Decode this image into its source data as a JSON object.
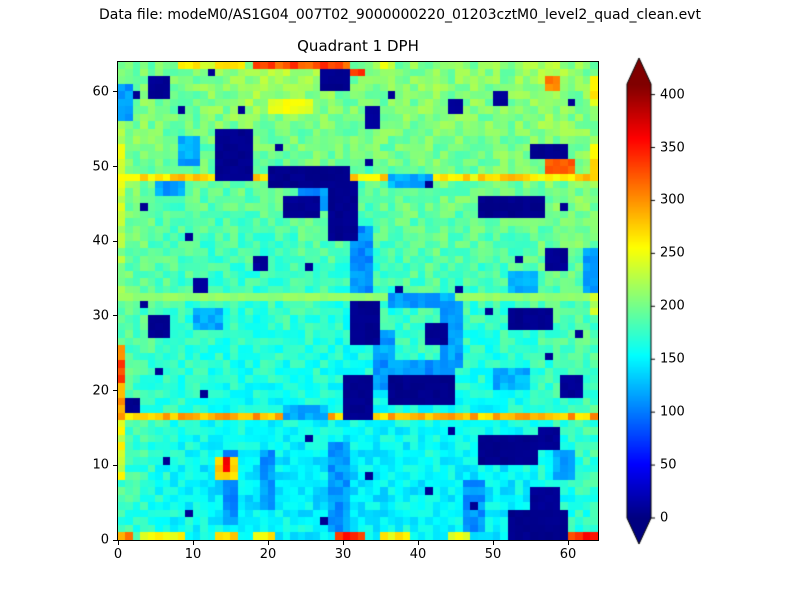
{
  "header": {
    "datafile_label": "Data file: modeM0/AS1G04_007T02_9000000220_01203cztM0_level2_quad_clean.evt"
  },
  "chart_data": {
    "type": "heatmap",
    "title": "Quadrant 1 DPH",
    "nx": 64,
    "ny": 64,
    "xlim": [
      0,
      64
    ],
    "ylim": [
      0,
      64
    ],
    "xticks": [
      0,
      10,
      20,
      30,
      40,
      50,
      60
    ],
    "yticks": [
      0,
      10,
      20,
      30,
      40,
      50,
      60
    ],
    "colormap": "jet",
    "zlim": [
      0,
      410
    ],
    "colorbar": {
      "ticks": [
        0,
        50,
        100,
        150,
        200,
        250,
        300,
        350,
        400
      ],
      "extend": "both",
      "position": "right"
    },
    "grid_note": "DPH counts estimated from rendered pixels; base_grid_16x16 is a coarse downsample (rows listed bottom-to-top), refined by the feature overlays below",
    "base_grid_16x16": [
      [
        175,
        160,
        155,
        150,
        150,
        155,
        150,
        145,
        150,
        155,
        155,
        150,
        150,
        150,
        160,
        170
      ],
      [
        180,
        160,
        150,
        145,
        145,
        150,
        145,
        140,
        145,
        150,
        150,
        150,
        145,
        150,
        160,
        170
      ],
      [
        180,
        165,
        155,
        150,
        150,
        150,
        150,
        145,
        150,
        150,
        155,
        150,
        150,
        155,
        165,
        175
      ],
      [
        185,
        170,
        160,
        155,
        155,
        155,
        155,
        150,
        155,
        155,
        160,
        155,
        155,
        160,
        170,
        180
      ],
      [
        185,
        170,
        165,
        160,
        160,
        160,
        160,
        155,
        160,
        160,
        165,
        160,
        160,
        165,
        175,
        180
      ],
      [
        185,
        175,
        170,
        165,
        165,
        165,
        165,
        160,
        160,
        165,
        170,
        165,
        165,
        170,
        175,
        185
      ],
      [
        190,
        180,
        175,
        170,
        170,
        170,
        170,
        165,
        165,
        170,
        175,
        170,
        170,
        175,
        180,
        185
      ],
      [
        190,
        180,
        175,
        175,
        170,
        175,
        175,
        170,
        170,
        175,
        180,
        175,
        175,
        180,
        185,
        190
      ],
      [
        195,
        185,
        180,
        180,
        175,
        180,
        180,
        175,
        175,
        180,
        185,
        180,
        180,
        185,
        190,
        195
      ],
      [
        195,
        185,
        185,
        180,
        180,
        180,
        185,
        180,
        180,
        185,
        190,
        185,
        185,
        190,
        195,
        200
      ],
      [
        200,
        190,
        185,
        185,
        185,
        185,
        190,
        185,
        185,
        190,
        195,
        190,
        190,
        195,
        200,
        200
      ],
      [
        200,
        190,
        190,
        190,
        190,
        190,
        195,
        190,
        190,
        195,
        200,
        195,
        195,
        200,
        200,
        205
      ],
      [
        205,
        195,
        195,
        195,
        195,
        195,
        200,
        195,
        195,
        200,
        200,
        200,
        200,
        200,
        205,
        205
      ],
      [
        205,
        200,
        195,
        200,
        200,
        200,
        200,
        200,
        200,
        200,
        205,
        200,
        200,
        205,
        210,
        205
      ],
      [
        205,
        200,
        200,
        205,
        215,
        210,
        205,
        200,
        200,
        205,
        205,
        205,
        205,
        205,
        215,
        205
      ],
      [
        200,
        200,
        205,
        210,
        220,
        230,
        215,
        205,
        205,
        205,
        210,
        205,
        205,
        210,
        220,
        205
      ]
    ],
    "noise": {
      "seed": 42,
      "amplitude": 18
    },
    "features": {
      "hot_rows": [
        {
          "y": 16,
          "value": 285,
          "jitter": 50
        },
        {
          "y": 48,
          "value": 268,
          "jitter": 45
        },
        {
          "y": 32,
          "value": 212,
          "jitter": 12
        }
      ],
      "edge_segments": [
        {
          "edge": "bottom",
          "from": 0,
          "to": 1,
          "value": 300
        },
        {
          "edge": "bottom",
          "from": 3,
          "to": 8,
          "value": 255
        },
        {
          "edge": "bottom",
          "from": 13,
          "to": 15,
          "value": 280
        },
        {
          "edge": "bottom",
          "from": 18,
          "to": 20,
          "value": 255
        },
        {
          "edge": "bottom",
          "from": 29,
          "to": 32,
          "value": 345
        },
        {
          "edge": "bottom",
          "from": 35,
          "to": 38,
          "value": 260
        },
        {
          "edge": "bottom",
          "from": 44,
          "to": 46,
          "value": 250
        },
        {
          "edge": "bottom",
          "from": 60,
          "to": 63,
          "value": 330
        },
        {
          "edge": "top",
          "from": 8,
          "to": 16,
          "value": 255
        },
        {
          "edge": "top",
          "from": 18,
          "to": 30,
          "value": 330
        },
        {
          "edge": "top",
          "from": 34,
          "to": 36,
          "value": 240
        },
        {
          "edge": "left",
          "from": 8,
          "to": 15,
          "value": 245
        },
        {
          "edge": "left",
          "from": 17,
          "to": 25,
          "value": 290
        },
        {
          "edge": "left",
          "from": 33,
          "to": 40,
          "value": 220
        },
        {
          "edge": "left",
          "from": 42,
          "to": 47,
          "value": 230
        },
        {
          "edge": "left",
          "from": 49,
          "to": 55,
          "value": 235
        },
        {
          "edge": "right",
          "from": 30,
          "to": 33,
          "value": 230
        },
        {
          "edge": "right",
          "from": 48,
          "to": 52,
          "value": 275
        },
        {
          "edge": "right",
          "from": 58,
          "to": 61,
          "value": 255
        }
      ],
      "blob_format": "[x,y,w,h,value]",
      "hot_cells": [
        [
          13,
          8,
          3,
          3,
          275
        ],
        [
          14,
          9,
          1,
          2,
          355
        ],
        [
          57,
          60,
          2,
          2,
          305
        ],
        [
          57,
          49,
          4,
          2,
          320
        ],
        [
          20,
          57,
          6,
          2,
          248
        ],
        [
          29,
          62,
          4,
          1,
          335
        ],
        [
          0,
          21,
          1,
          3,
          330
        ],
        [
          62,
          0,
          2,
          1,
          360
        ]
      ],
      "cool_blobs": [
        [
          28,
          1,
          3,
          12,
          112
        ],
        [
          14,
          2,
          2,
          10,
          108
        ],
        [
          19,
          4,
          2,
          8,
          112
        ],
        [
          24,
          44,
          4,
          4,
          112
        ],
        [
          31,
          33,
          3,
          9,
          110
        ],
        [
          34,
          20,
          3,
          8,
          116
        ],
        [
          35,
          22,
          10,
          2,
          112
        ],
        [
          36,
          31,
          9,
          2,
          118
        ],
        [
          43,
          23,
          3,
          9,
          114
        ],
        [
          46,
          1,
          3,
          7,
          112
        ],
        [
          10,
          28,
          4,
          3,
          118
        ],
        [
          0,
          56,
          2,
          5,
          112
        ],
        [
          62,
          33,
          2,
          6,
          118
        ],
        [
          22,
          16,
          6,
          2,
          120
        ],
        [
          50,
          20,
          5,
          3,
          122
        ],
        [
          5,
          46,
          4,
          2,
          115
        ],
        [
          36,
          47,
          6,
          2,
          120
        ],
        [
          52,
          33,
          4,
          3,
          122
        ],
        [
          8,
          50,
          3,
          4,
          118
        ],
        [
          58,
          8,
          3,
          4,
          120
        ]
      ],
      "cold_blobs": [
        [
          4,
          59,
          3,
          3,
          8
        ],
        [
          27,
          60,
          4,
          3,
          5
        ],
        [
          13,
          48,
          5,
          7,
          6
        ],
        [
          20,
          47,
          11,
          3,
          5
        ],
        [
          28,
          40,
          4,
          8,
          6
        ],
        [
          22,
          43,
          5,
          3,
          8
        ],
        [
          48,
          43,
          9,
          3,
          5
        ],
        [
          55,
          51,
          5,
          2,
          6
        ],
        [
          57,
          36,
          3,
          3,
          8
        ],
        [
          31,
          26,
          4,
          6,
          6
        ],
        [
          36,
          18,
          9,
          4,
          5
        ],
        [
          30,
          16,
          4,
          6,
          6
        ],
        [
          41,
          26,
          3,
          3,
          8
        ],
        [
          52,
          28,
          6,
          3,
          6
        ],
        [
          59,
          19,
          3,
          3,
          8
        ],
        [
          48,
          10,
          8,
          4,
          5
        ],
        [
          56,
          12,
          3,
          3,
          8
        ],
        [
          52,
          0,
          8,
          4,
          5
        ],
        [
          55,
          4,
          4,
          3,
          8
        ],
        [
          4,
          27,
          3,
          3,
          8
        ],
        [
          33,
          55,
          2,
          3,
          10
        ],
        [
          1,
          17,
          2,
          2,
          6
        ],
        [
          44,
          57,
          2,
          2,
          10
        ],
        [
          50,
          58,
          2,
          2,
          10
        ],
        [
          18,
          36,
          2,
          2,
          10
        ],
        [
          10,
          33,
          2,
          2,
          10
        ]
      ],
      "cold_specks": [
        [
          2,
          59
        ],
        [
          8,
          57
        ],
        [
          16,
          57
        ],
        [
          36,
          59
        ],
        [
          60,
          58
        ],
        [
          3,
          44
        ],
        [
          9,
          40
        ],
        [
          25,
          36
        ],
        [
          45,
          33
        ],
        [
          49,
          30
        ],
        [
          61,
          27
        ],
        [
          5,
          22
        ],
        [
          11,
          19
        ],
        [
          25,
          13
        ],
        [
          33,
          8
        ],
        [
          41,
          6
        ],
        [
          47,
          4
        ],
        [
          9,
          3
        ],
        [
          27,
          2
        ],
        [
          37,
          33
        ],
        [
          53,
          37
        ],
        [
          59,
          44
        ],
        [
          21,
          52
        ],
        [
          33,
          50
        ],
        [
          41,
          47
        ],
        [
          57,
          24
        ],
        [
          3,
          31
        ],
        [
          6,
          10
        ],
        [
          44,
          14
        ],
        [
          12,
          62
        ]
      ]
    }
  }
}
